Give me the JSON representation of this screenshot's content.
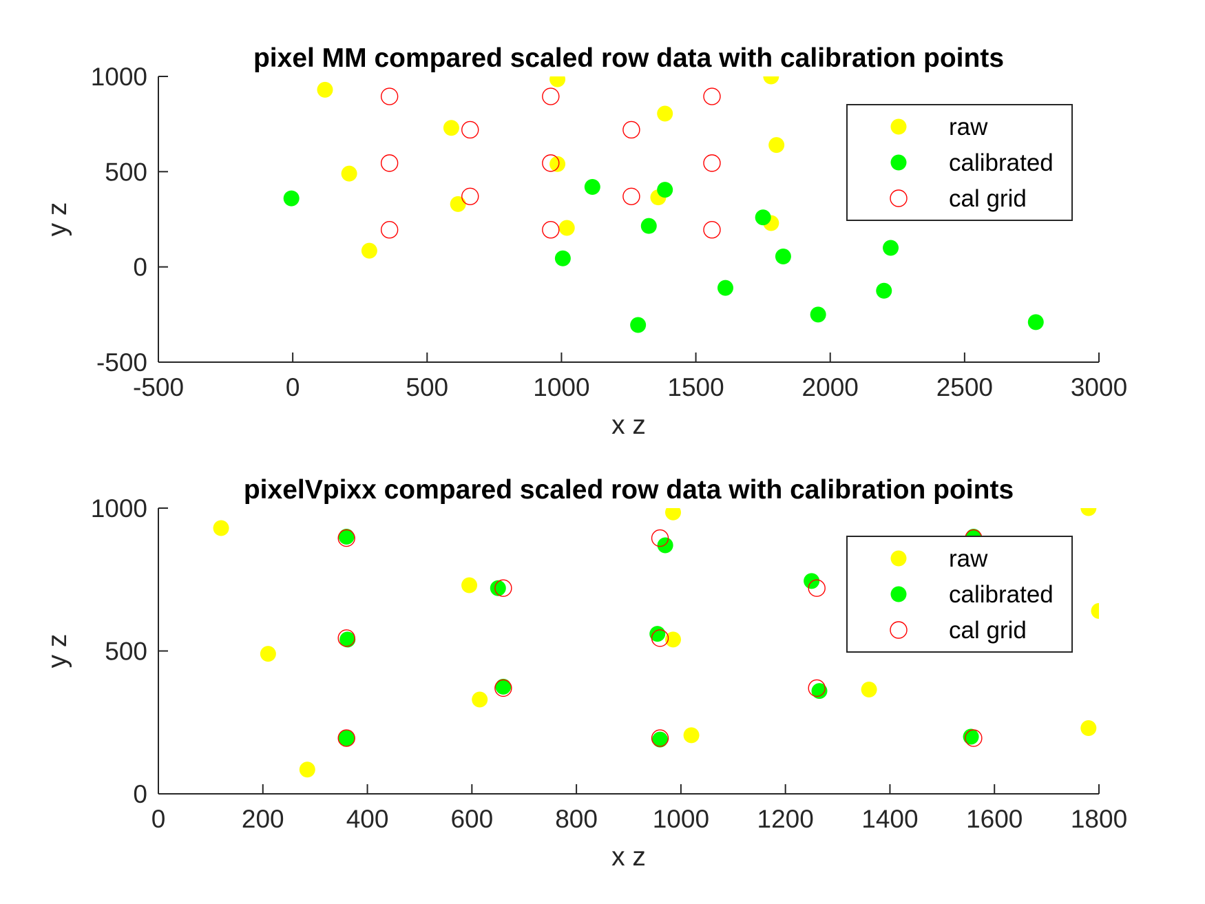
{
  "chart_data": [
    {
      "type": "scatter",
      "title": "pixel MM compared scaled row data with calibration points",
      "xlabel": "x z",
      "ylabel": "y z",
      "xlim": [
        -500,
        3000
      ],
      "ylim": [
        -500,
        1000
      ],
      "xticks": [
        -500,
        0,
        500,
        1000,
        1500,
        2000,
        2500,
        3000
      ],
      "yticks": [
        -500,
        0,
        500,
        1000
      ],
      "xtick_labels": [
        "-500",
        "0",
        "500",
        "1000",
        "1500",
        "2000",
        "2500",
        "3000"
      ],
      "ytick_labels": [
        "-500",
        "0",
        "500",
        "1000"
      ],
      "grid": false,
      "legend_position": "top-right",
      "series": [
        {
          "name": "raw",
          "marker": "filled-circle",
          "color": "#FFFF00",
          "points": [
            [
              120,
              930
            ],
            [
              210,
              490
            ],
            [
              285,
              85
            ],
            [
              590,
              730
            ],
            [
              615,
              330
            ],
            [
              985,
              985
            ],
            [
              985,
              540
            ],
            [
              1020,
              205
            ],
            [
              1360,
              365
            ],
            [
              1385,
              805
            ],
            [
              1780,
              1000
            ],
            [
              1800,
              640
            ],
            [
              1780,
              230
            ]
          ]
        },
        {
          "name": "calibrated",
          "marker": "filled-circle",
          "color": "#00FF00",
          "points": [
            [
              -5,
              360
            ],
            [
              1005,
              45
            ],
            [
              1115,
              420
            ],
            [
              1285,
              -305
            ],
            [
              1325,
              215
            ],
            [
              1385,
              405
            ],
            [
              1610,
              -110
            ],
            [
              1750,
              260
            ],
            [
              1825,
              55
            ],
            [
              1955,
              -250
            ],
            [
              2200,
              -125
            ],
            [
              2225,
              100
            ],
            [
              2765,
              -290
            ]
          ]
        },
        {
          "name": "cal grid",
          "marker": "open-circle",
          "color": "#FF0000",
          "points": [
            [
              360,
              895
            ],
            [
              360,
              545
            ],
            [
              360,
              195
            ],
            [
              660,
              720
            ],
            [
              660,
              370
            ],
            [
              960,
              895
            ],
            [
              960,
              545
            ],
            [
              960,
              195
            ],
            [
              1260,
              720
            ],
            [
              1260,
              370
            ],
            [
              1560,
              895
            ],
            [
              1560,
              545
            ],
            [
              1560,
              195
            ]
          ]
        }
      ]
    },
    {
      "type": "scatter",
      "title": "pixelVpixx compared scaled row data with calibration points",
      "xlabel": "x z",
      "ylabel": "y z",
      "xlim": [
        0,
        1800
      ],
      "ylim": [
        0,
        1000
      ],
      "xticks": [
        0,
        200,
        400,
        600,
        800,
        1000,
        1200,
        1400,
        1600,
        1800
      ],
      "yticks": [
        0,
        500,
        1000
      ],
      "xtick_labels": [
        "0",
        "200",
        "400",
        "600",
        "800",
        "1000",
        "1200",
        "1400",
        "1600",
        "1800"
      ],
      "ytick_labels": [
        "0",
        "500",
        "1000"
      ],
      "grid": false,
      "legend_position": "top-right",
      "series": [
        {
          "name": "raw",
          "marker": "filled-circle",
          "color": "#FFFF00",
          "points": [
            [
              120,
              930
            ],
            [
              210,
              490
            ],
            [
              285,
              85
            ],
            [
              595,
              730
            ],
            [
              615,
              330
            ],
            [
              985,
              985
            ],
            [
              985,
              540
            ],
            [
              1020,
              205
            ],
            [
              1360,
              365
            ],
            [
              1385,
              805
            ],
            [
              1780,
              1000
            ],
            [
              1800,
              640
            ],
            [
              1780,
              230
            ]
          ]
        },
        {
          "name": "calibrated",
          "marker": "filled-circle",
          "color": "#00FF00",
          "points": [
            [
              360,
              900
            ],
            [
              362,
              540
            ],
            [
              360,
              195
            ],
            [
              650,
              720
            ],
            [
              660,
              375
            ],
            [
              955,
              560
            ],
            [
              960,
              190
            ],
            [
              970,
              870
            ],
            [
              1250,
              745
            ],
            [
              1265,
              360
            ],
            [
              1555,
              200
            ],
            [
              1560,
              900
            ]
          ]
        },
        {
          "name": "cal grid",
          "marker": "open-circle",
          "color": "#FF0000",
          "points": [
            [
              360,
              895
            ],
            [
              360,
              545
            ],
            [
              360,
              195
            ],
            [
              660,
              720
            ],
            [
              660,
              370
            ],
            [
              960,
              895
            ],
            [
              960,
              545
            ],
            [
              960,
              195
            ],
            [
              1260,
              720
            ],
            [
              1260,
              370
            ],
            [
              1560,
              895
            ],
            [
              1560,
              545
            ],
            [
              1560,
              195
            ]
          ]
        }
      ]
    }
  ]
}
